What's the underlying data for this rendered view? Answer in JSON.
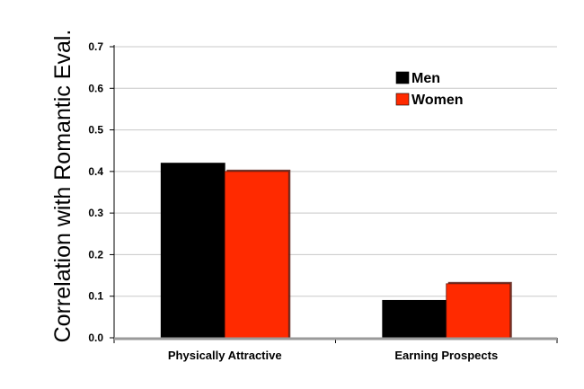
{
  "chart_data": {
    "type": "bar",
    "title": "",
    "xlabel": "",
    "ylabel": "Correlation with Romantic Eval.",
    "categories": [
      "Physically Attractive",
      "Earning Prospects"
    ],
    "series": [
      {
        "name": "Men",
        "color": "#000000",
        "values": [
          0.42,
          0.09
        ]
      },
      {
        "name": "Women",
        "color": "#ff2a00",
        "values": [
          0.4,
          0.13
        ]
      }
    ],
    "ylim": [
      0,
      0.7
    ],
    "yticks": [
      "0.0",
      "0.1",
      "0.2",
      "0.3",
      "0.4",
      "0.5",
      "0.6",
      "0.7"
    ],
    "grid": true,
    "legend_position": "top-right"
  }
}
